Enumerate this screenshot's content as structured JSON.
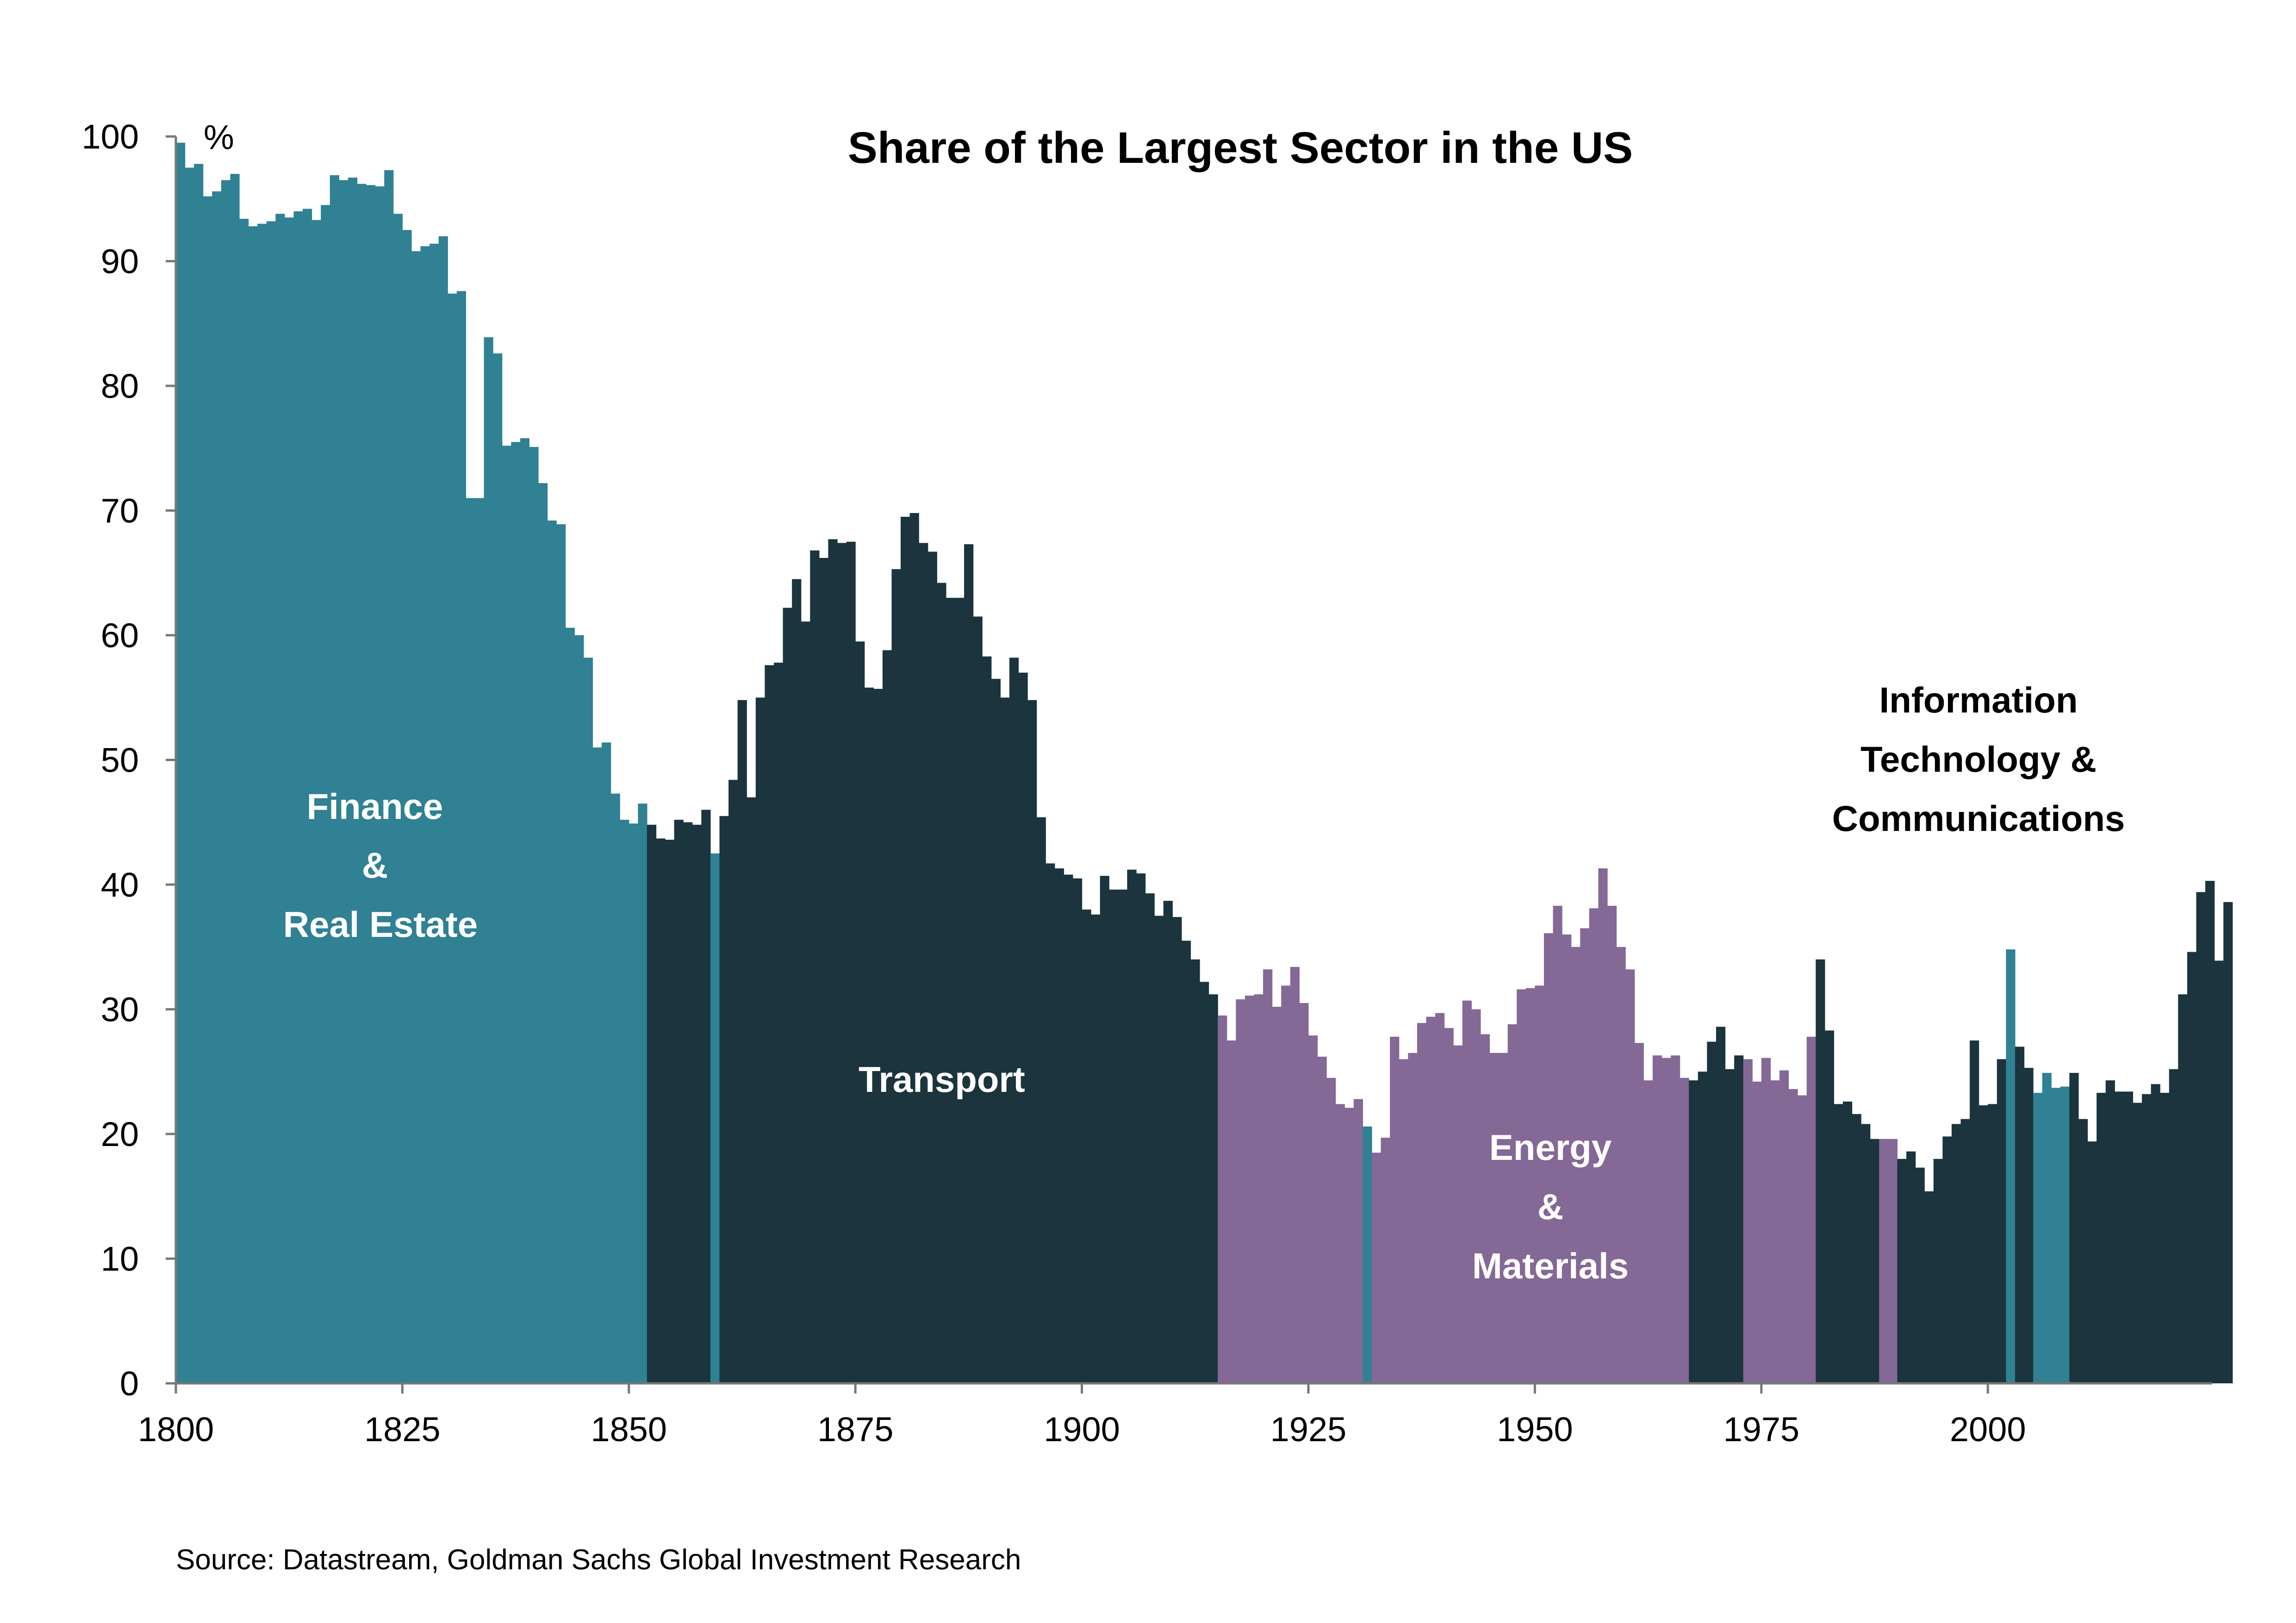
{
  "chart_data": {
    "type": "bar",
    "title": "Share of the Largest Sector in the US",
    "ylabel": "%",
    "xlabel": "",
    "xlim": [
      1800,
      2024
    ],
    "ylim": [
      0,
      100
    ],
    "x_ticks": [
      1800,
      1825,
      1850,
      1875,
      1900,
      1925,
      1950,
      1975,
      2000
    ],
    "y_ticks": [
      0,
      10,
      20,
      30,
      40,
      50,
      60,
      70,
      80,
      90,
      100
    ],
    "grid": false,
    "legend": "none",
    "start_year": 1800,
    "colors": {
      "finance": "#2f8193",
      "transport": "#1b343d",
      "energy": "#846896",
      "tech": "#1b343d"
    },
    "sector_names": {
      "finance": "Finance & Real Estate",
      "transport": "Transport",
      "energy": "Energy & Materials",
      "tech": "Information Technology & Communications"
    },
    "segments": [
      {
        "sector": "finance",
        "from": 1800,
        "to": 1851
      },
      {
        "sector": "transport",
        "from": 1852,
        "to": 1858
      },
      {
        "sector": "finance",
        "from": 1859,
        "to": 1859
      },
      {
        "sector": "transport",
        "from": 1860,
        "to": 1914
      },
      {
        "sector": "energy",
        "from": 1915,
        "to": 1930
      },
      {
        "sector": "finance",
        "from": 1931,
        "to": 1931
      },
      {
        "sector": "energy",
        "from": 1932,
        "to": 1966
      },
      {
        "sector": "tech",
        "from": 1967,
        "to": 1972
      },
      {
        "sector": "energy",
        "from": 1973,
        "to": 1980
      },
      {
        "sector": "tech",
        "from": 1981,
        "to": 1987
      },
      {
        "sector": "energy",
        "from": 1988,
        "to": 1989
      },
      {
        "sector": "tech",
        "from": 1990,
        "to": 2001
      },
      {
        "sector": "finance",
        "from": 2002,
        "to": 2002
      },
      {
        "sector": "tech",
        "from": 2003,
        "to": 2004
      },
      {
        "sector": "finance",
        "from": 2005,
        "to": 2008
      },
      {
        "sector": "tech",
        "from": 2009,
        "to": 2023
      }
    ],
    "values": [
      99.5,
      97.5,
      97.8,
      95.2,
      95.6,
      96.5,
      97.0,
      93.4,
      92.8,
      93.0,
      93.2,
      93.8,
      93.5,
      94.0,
      94.2,
      93.3,
      94.5,
      96.9,
      96.5,
      96.7,
      96.2,
      96.1,
      96.0,
      97.3,
      93.8,
      92.5,
      90.8,
      91.2,
      91.4,
      92.0,
      87.4,
      87.6,
      71.0,
      71.0,
      83.9,
      82.6,
      75.2,
      75.5,
      75.8,
      75.1,
      72.2,
      69.2,
      68.9,
      60.6,
      60.0,
      58.2,
      51.0,
      51.4,
      47.3,
      45.2,
      44.9,
      46.5,
      44.8,
      43.7,
      43.6,
      45.2,
      45.0,
      44.8,
      46.0,
      42.5,
      45.5,
      48.4,
      54.8,
      47.0,
      55.0,
      57.6,
      57.8,
      62.2,
      64.5,
      61.1,
      66.8,
      66.2,
      67.7,
      67.4,
      67.5,
      59.5,
      55.8,
      55.7,
      58.8,
      65.3,
      69.5,
      69.8,
      67.4,
      66.7,
      64.2,
      63.0,
      63.0,
      67.3,
      61.5,
      58.3,
      56.5,
      55.0,
      58.2,
      57.0,
      54.8,
      45.4,
      41.7,
      41.3,
      40.8,
      40.5,
      38.0,
      37.6,
      40.7,
      39.6,
      39.6,
      41.2,
      40.9,
      39.3,
      37.5,
      38.7,
      37.4,
      35.5,
      34.0,
      32.2,
      31.2,
      29.5,
      27.5,
      30.8,
      31.1,
      31.2,
      33.2,
      30.2,
      31.9,
      33.4,
      30.5,
      27.9,
      26.2,
      24.5,
      22.4,
      22.1,
      22.8,
      20.6,
      18.5,
      19.7,
      27.8,
      26.0,
      26.5,
      28.9,
      29.4,
      29.7,
      28.5,
      27.1,
      30.7,
      30.0,
      28.0,
      26.5,
      26.5,
      28.8,
      31.6,
      31.7,
      31.9,
      36.1,
      38.3,
      36.0,
      35.0,
      36.5,
      38.1,
      41.3,
      38.3,
      35.0,
      33.2,
      27.3,
      24.3,
      26.3,
      26.1,
      26.3,
      24.5,
      24.3,
      25.0,
      27.4,
      28.6,
      25.2,
      26.3,
      26.0,
      24.2,
      26.1,
      24.3,
      25.1,
      23.6,
      23.1,
      27.8,
      34.0,
      28.3,
      22.4,
      22.6,
      21.6,
      20.8,
      19.6,
      19.6,
      19.6,
      18.0,
      18.6,
      17.3,
      15.4,
      18.0,
      19.8,
      20.8,
      21.2,
      27.5,
      22.3,
      22.4,
      26.0,
      34.8,
      27.0,
      25.3,
      23.3,
      24.9,
      23.7,
      23.8,
      24.9,
      21.2,
      19.4,
      23.3,
      24.3,
      23.4,
      23.4,
      22.5,
      23.2,
      24.0,
      23.3,
      25.2,
      31.2,
      34.6,
      39.4,
      40.3,
      33.9,
      38.6
    ]
  },
  "annotations": {
    "finance": [
      "Finance",
      "&",
      "Real Estate"
    ],
    "transport": [
      "Transport"
    ],
    "energy": [
      "Energy",
      "&",
      "Materials"
    ],
    "tech": [
      "Information",
      "Technology &",
      "Communications"
    ]
  },
  "source": "Source: Datastream, Goldman Sachs Global Investment Research"
}
